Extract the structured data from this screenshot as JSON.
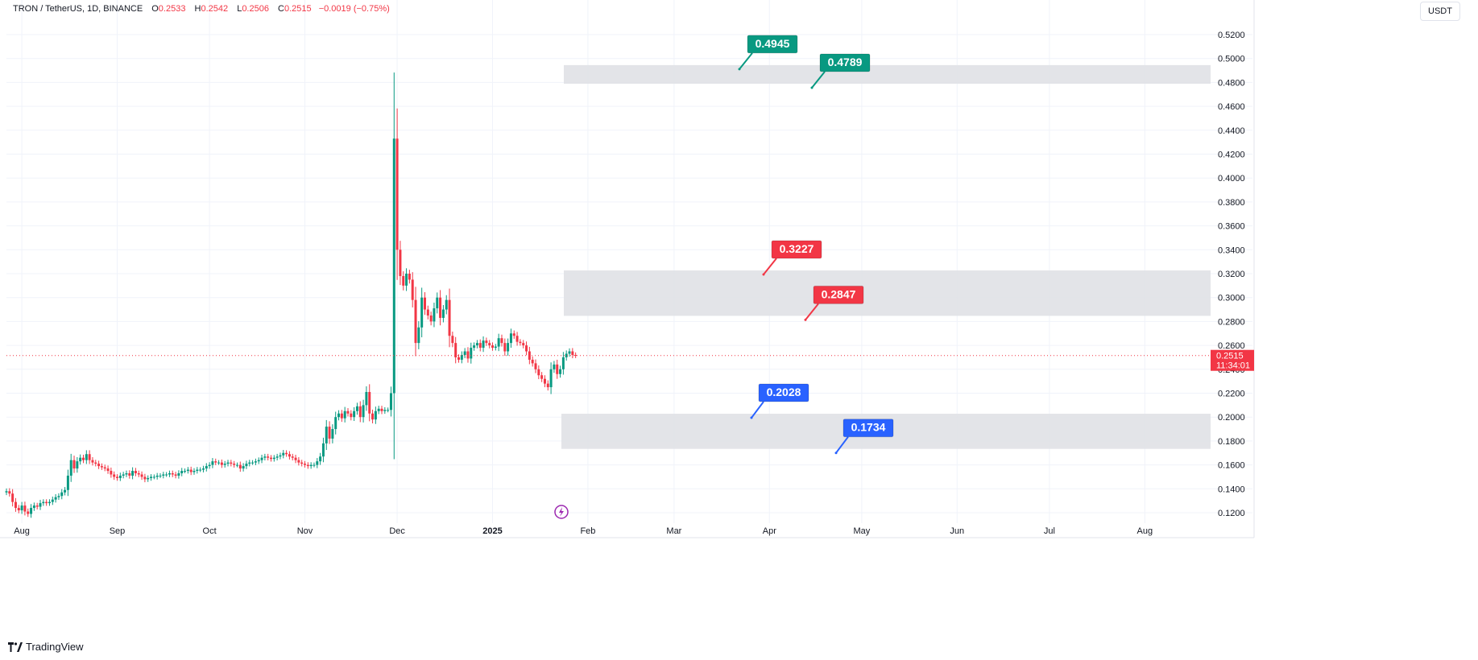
{
  "header": {
    "symbol": "TRON / TetherUS, 1D, BINANCE",
    "o_label": "O",
    "o_value": "0.2533",
    "h_label": "H",
    "h_value": "0.2542",
    "l_label": "L",
    "l_value": "0.2506",
    "c_label": "C",
    "c_value": "0.2515",
    "change": "−0.0019 (−0.75%)"
  },
  "unit_button": "USDT",
  "brand": "TradingView",
  "colors": {
    "up": "#089981",
    "down": "#f23645",
    "zone": "#e0e1e6",
    "blue": "#2962ff",
    "grid": "#f0f3fa"
  },
  "chart_data": {
    "type": "candlestick",
    "symbol": "TRON / TetherUS",
    "interval": "1D",
    "exchange": "BINANCE",
    "ylim": [
      0.11,
      0.53
    ],
    "y_ticks": [
      "0.1200",
      "0.1400",
      "0.1600",
      "0.1800",
      "0.2000",
      "0.2200",
      "0.2400",
      "0.2600",
      "0.2800",
      "0.3000",
      "0.3200",
      "0.3400",
      "0.3600",
      "0.3800",
      "0.4000",
      "0.4200",
      "0.4400",
      "0.4600",
      "0.4800",
      "0.5000",
      "0.5200"
    ],
    "x_ticks": [
      "Aug",
      "Sep",
      "Oct",
      "Nov",
      "Dec",
      "2025",
      "Feb",
      "Mar",
      "Apr",
      "May",
      "Jun",
      "Jul",
      "Aug"
    ],
    "x_range": [
      "2024-07-27",
      "2025-09-05"
    ],
    "last_price": "0.2515",
    "countdown": "11:34:01",
    "series": [
      {
        "name": "close",
        "x_start": "2024-07-27",
        "values": [
          0.138,
          0.136,
          0.129,
          0.124,
          0.122,
          0.126,
          0.121,
          0.119,
          0.124,
          0.126,
          0.125,
          0.128,
          0.129,
          0.128,
          0.129,
          0.131,
          0.133,
          0.134,
          0.137,
          0.139,
          0.151,
          0.164,
          0.157,
          0.163,
          0.166,
          0.164,
          0.169,
          0.164,
          0.162,
          0.161,
          0.159,
          0.158,
          0.157,
          0.155,
          0.152,
          0.15,
          0.149,
          0.151,
          0.152,
          0.153,
          0.151,
          0.155,
          0.153,
          0.152,
          0.15,
          0.148,
          0.149,
          0.15,
          0.15,
          0.151,
          0.151,
          0.152,
          0.152,
          0.153,
          0.152,
          0.151,
          0.153,
          0.155,
          0.155,
          0.156,
          0.154,
          0.155,
          0.156,
          0.156,
          0.157,
          0.159,
          0.16,
          0.163,
          0.162,
          0.162,
          0.16,
          0.161,
          0.162,
          0.161,
          0.16,
          0.16,
          0.157,
          0.159,
          0.161,
          0.162,
          0.162,
          0.163,
          0.164,
          0.166,
          0.167,
          0.166,
          0.165,
          0.166,
          0.167,
          0.168,
          0.17,
          0.169,
          0.167,
          0.166,
          0.164,
          0.162,
          0.161,
          0.16,
          0.159,
          0.16,
          0.16,
          0.163,
          0.167,
          0.178,
          0.192,
          0.182,
          0.19,
          0.2,
          0.203,
          0.199,
          0.205,
          0.203,
          0.2,
          0.205,
          0.209,
          0.2,
          0.21,
          0.221,
          0.203,
          0.198,
          0.205,
          0.207,
          0.205,
          0.206,
          0.206,
          0.22,
          0.433,
          0.34,
          0.318,
          0.31,
          0.32,
          0.315,
          0.298,
          0.262,
          0.275,
          0.3,
          0.29,
          0.285,
          0.28,
          0.291,
          0.3,
          0.283,
          0.29,
          0.298,
          0.268,
          0.262,
          0.25,
          0.248,
          0.252,
          0.255,
          0.249,
          0.258,
          0.26,
          0.262,
          0.258,
          0.264,
          0.262,
          0.26,
          0.258,
          0.259,
          0.266,
          0.262,
          0.255,
          0.262,
          0.27,
          0.268,
          0.263,
          0.262,
          0.26,
          0.255,
          0.248,
          0.245,
          0.24,
          0.235,
          0.232,
          0.228,
          0.225,
          0.24,
          0.244,
          0.236,
          0.24,
          0.25,
          0.253,
          0.255,
          0.252,
          0.2515
        ]
      }
    ],
    "zones": [
      {
        "top": 0.4945,
        "bottom": 0.4789,
        "labels": [
          "0.4945",
          "0.4789"
        ],
        "color": "up"
      },
      {
        "top": 0.3227,
        "bottom": 0.2847,
        "labels": [
          "0.3227",
          "0.2847"
        ],
        "color": "down"
      },
      {
        "top": 0.2028,
        "bottom": 0.1734,
        "labels": [
          "0.2028",
          "0.1734"
        ],
        "color": "blue"
      }
    ]
  }
}
